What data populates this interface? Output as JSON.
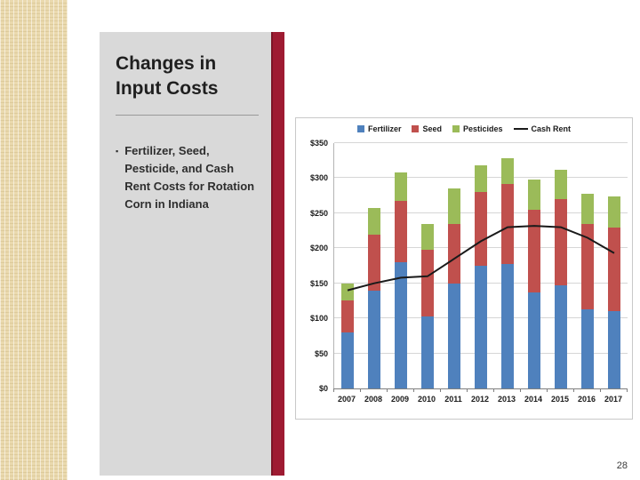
{
  "slide": {
    "title": "Changes in Input Costs",
    "bullet_marker": "▪",
    "bullet_text": "Fertilizer, Seed, Pesticide, and Cash Rent Costs for Rotation Corn in Indiana",
    "page_number": "28"
  },
  "colors": {
    "accent_bar": "#9e1b32",
    "panel": "#d9d9d9",
    "strip": "#ead9ae",
    "fertilizer": "#4f81bd",
    "seed": "#c0504d",
    "pesticides": "#9bbb59",
    "cash_rent": "#1a1a1a"
  },
  "chart_data": {
    "type": "bar",
    "stacked": true,
    "title": "",
    "xlabel": "",
    "ylabel": "",
    "categories": [
      "2007",
      "2008",
      "2009",
      "2010",
      "2011",
      "2012",
      "2013",
      "2014",
      "2015",
      "2016",
      "2017"
    ],
    "series": [
      {
        "name": "Fertilizer",
        "kind": "bar",
        "color": "#4f81bd",
        "values": [
          80,
          140,
          180,
          103,
          150,
          175,
          177,
          137,
          147,
          113,
          110
        ]
      },
      {
        "name": "Seed",
        "kind": "bar",
        "color": "#c0504d",
        "values": [
          45,
          80,
          88,
          95,
          85,
          105,
          115,
          118,
          123,
          122,
          120
        ]
      },
      {
        "name": "Pesticides",
        "kind": "bar",
        "color": "#9bbb59",
        "values": [
          25,
          38,
          40,
          37,
          50,
          38,
          36,
          43,
          42,
          43,
          44
        ]
      },
      {
        "name": "Cash Rent",
        "kind": "line",
        "color": "#1a1a1a",
        "values": [
          140,
          150,
          158,
          160,
          185,
          210,
          230,
          232,
          230,
          215,
          193
        ]
      }
    ],
    "ylim": [
      0,
      350
    ],
    "ytick_step": 50,
    "ytick_labels": [
      "$0",
      "$50",
      "$100",
      "$150",
      "$200",
      "$250",
      "$300",
      "$350"
    ],
    "legend_position": "top",
    "grid": true
  }
}
